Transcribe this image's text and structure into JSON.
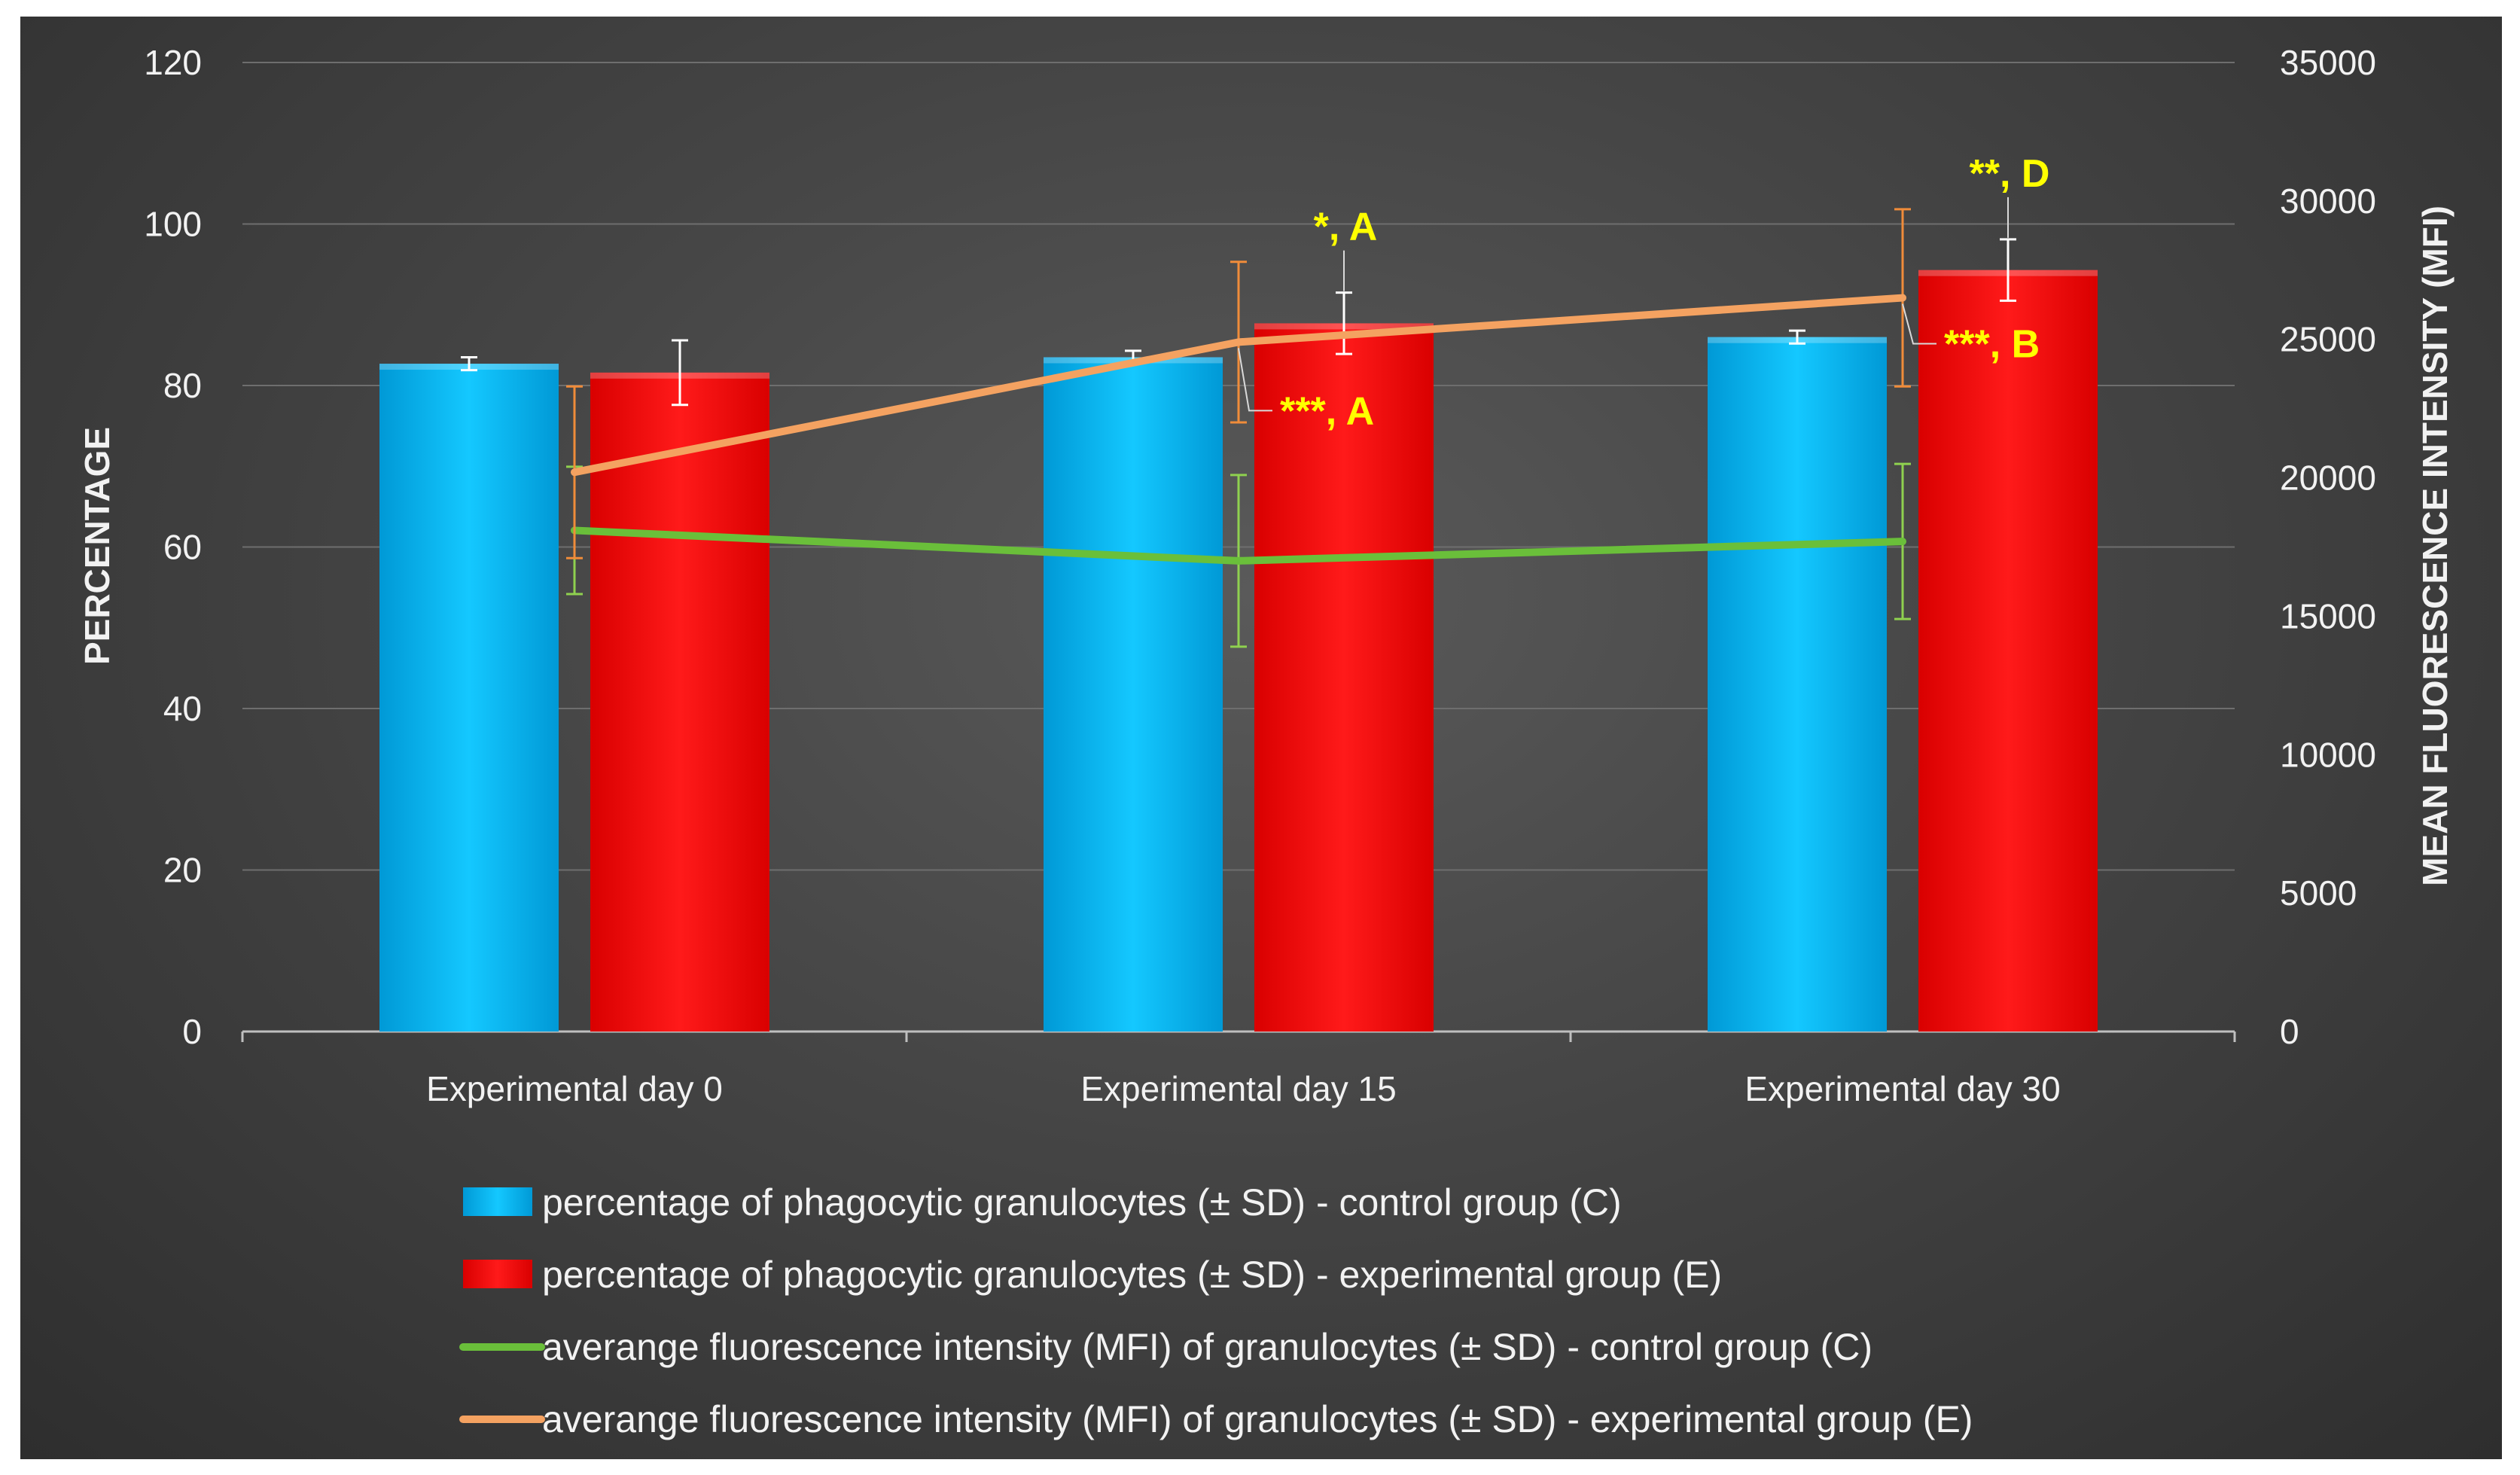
{
  "chart_data": {
    "type": "bar",
    "categories": [
      "Experimental day 0",
      "Experimental day 15",
      "Experimental day 30"
    ],
    "ylabel": "PERCENTAGE",
    "y2label": "MEAN FLUORESCENCE INTENSITY (MFI)",
    "ylim": [
      0,
      120
    ],
    "y2lim": [
      0,
      35000
    ],
    "yticks": [
      "0",
      "20",
      "40",
      "60",
      "80",
      "100",
      "120"
    ],
    "y2ticks": [
      "0",
      "5000",
      "10000",
      "15000",
      "20000",
      "25000",
      "30000",
      "35000"
    ],
    "grid": "horizontal",
    "legend_position": "bottom",
    "series": [
      {
        "name": "percentage of phagocytic granulocytes (± SD) - control group (C)",
        "type": "bar",
        "axis": "left",
        "color": "#00b4f0",
        "values": [
          82.7,
          83.5,
          86.0
        ],
        "sd": [
          0.8,
          0.8,
          0.8
        ]
      },
      {
        "name": "percentage of phagocytic granulocytes (± SD) - experimental group (E)",
        "type": "bar",
        "axis": "left",
        "color": "#ff0000",
        "values": [
          81.6,
          87.7,
          94.3
        ],
        "sd": [
          4.0,
          3.8,
          3.8
        ]
      },
      {
        "name": "averange fluorescence intensity (MFI) of granulocytes (± SD) - control group (C)",
        "type": "line",
        "axis": "right",
        "color": "#6abf3a",
        "errorbar_color": "#8fd14f",
        "values": [
          18100,
          17000,
          17700
        ],
        "sd": [
          2300,
          3100,
          2800
        ]
      },
      {
        "name": "averange fluorescence intensity (MFI) of granulocytes (± SD) - experimental group (E)",
        "type": "line",
        "axis": "right",
        "color": "#f4a261",
        "errorbar_color": "#f08c3a",
        "values": [
          20200,
          24900,
          26500
        ],
        "sd": [
          3100,
          2900,
          3200
        ]
      }
    ],
    "annotations": [
      {
        "text": "*, A",
        "category": 1,
        "target": "bar-experimental"
      },
      {
        "text": "***, A",
        "category": 1,
        "target": "line-experimental"
      },
      {
        "text": "**, D",
        "category": 2,
        "target": "bar-experimental"
      },
      {
        "text": "***, B",
        "category": 2,
        "target": "line-experimental"
      }
    ]
  }
}
